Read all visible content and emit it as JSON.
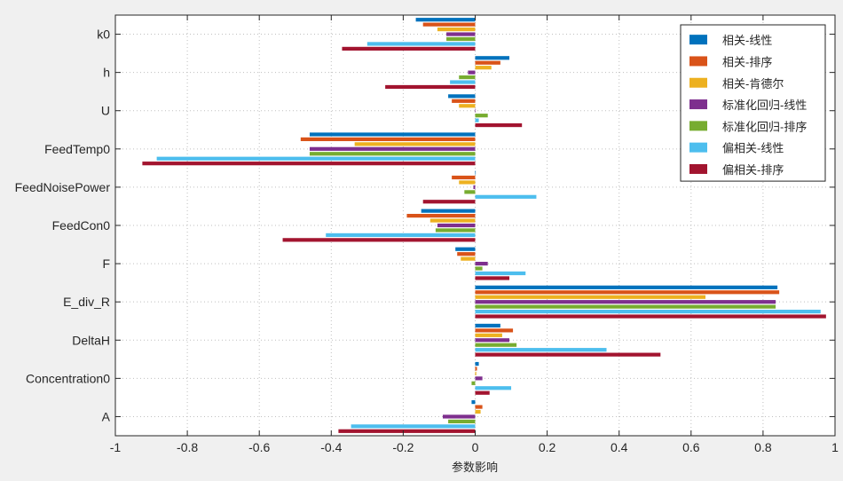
{
  "chart_data": {
    "type": "bar",
    "orientation": "horizontal",
    "xlabel": "参数影响",
    "ylabel": "",
    "xlim": [
      -1,
      1
    ],
    "xticks": [
      -1,
      -0.8,
      -0.6,
      -0.4,
      -0.2,
      0,
      0.2,
      0.4,
      0.6,
      0.8,
      1
    ],
    "xtick_labels": [
      "-1",
      "-0.8",
      "-0.6",
      "-0.4",
      "-0.2",
      "0",
      "0.2",
      "0.4",
      "0.6",
      "0.8",
      "1"
    ],
    "grid": true,
    "grid_style": "dotted",
    "legend_position": "top-right",
    "categories": [
      "k0",
      "h",
      "U",
      "FeedTemp0",
      "FeedNoisePower",
      "FeedCon0",
      "F",
      "E_div_R",
      "DeltaH",
      "Concentration0",
      "A"
    ],
    "series": [
      {
        "name": "相关-线性",
        "color": "#0072bd",
        "values": [
          -0.165,
          0.095,
          -0.075,
          -0.46,
          0.0,
          -0.15,
          -0.055,
          0.84,
          0.07,
          0.01,
          -0.01
        ]
      },
      {
        "name": "相关-排序",
        "color": "#d95319",
        "values": [
          -0.145,
          0.07,
          -0.065,
          -0.485,
          -0.065,
          -0.19,
          -0.05,
          0.845,
          0.105,
          0.005,
          0.02
        ]
      },
      {
        "name": "相关-肯德尔",
        "color": "#edb120",
        "values": [
          -0.105,
          0.045,
          -0.045,
          -0.335,
          -0.045,
          -0.125,
          -0.04,
          0.64,
          0.075,
          0.003,
          0.015
        ]
      },
      {
        "name": "标准化回归-线性",
        "color": "#7e2f8e",
        "values": [
          -0.08,
          -0.02,
          0.0,
          -0.46,
          -0.005,
          -0.105,
          0.035,
          0.835,
          0.095,
          0.02,
          -0.09
        ]
      },
      {
        "name": "标准化回归-排序",
        "color": "#77ac30",
        "values": [
          -0.08,
          -0.045,
          0.035,
          -0.46,
          -0.03,
          -0.11,
          0.02,
          0.835,
          0.115,
          -0.01,
          -0.075
        ]
      },
      {
        "name": "偏相关-线性",
        "color": "#4dbeee",
        "values": [
          -0.3,
          -0.07,
          0.01,
          -0.885,
          0.17,
          -0.415,
          0.14,
          0.96,
          0.365,
          0.1,
          -0.345
        ]
      },
      {
        "name": "偏相关-排序",
        "color": "#a2142f",
        "values": [
          -0.37,
          -0.25,
          0.13,
          -0.925,
          -0.145,
          -0.535,
          0.095,
          0.975,
          0.515,
          0.04,
          -0.38
        ]
      }
    ]
  }
}
